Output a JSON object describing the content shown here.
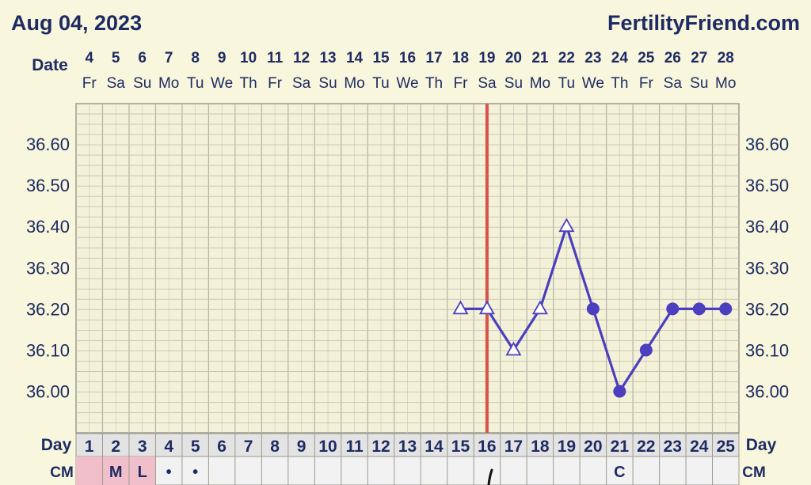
{
  "header": {
    "date": "Aug 04, 2023",
    "site": "FertilityFriend.com"
  },
  "labels": {
    "date_row": "Date",
    "day_row": "Day",
    "cm_row": "CM"
  },
  "columns": {
    "dates": [
      "4",
      "5",
      "6",
      "7",
      "8",
      "9",
      "10",
      "11",
      "12",
      "13",
      "14",
      "15",
      "16",
      "17",
      "18",
      "19",
      "20",
      "21",
      "22",
      "23",
      "24",
      "25",
      "26",
      "27",
      "28"
    ],
    "weekdays": [
      "Fr",
      "Sa",
      "Su",
      "Mo",
      "Tu",
      "We",
      "Th",
      "Fr",
      "Sa",
      "Su",
      "Mo",
      "Tu",
      "We",
      "Th",
      "Fr",
      "Sa",
      "Su",
      "Mo",
      "Tu",
      "We",
      "Th",
      "Fr",
      "Sa",
      "Su",
      "Mo"
    ],
    "cycle_days": [
      "1",
      "2",
      "3",
      "4",
      "5",
      "6",
      "7",
      "8",
      "9",
      "10",
      "11",
      "12",
      "13",
      "14",
      "15",
      "16",
      "17",
      "18",
      "19",
      "20",
      "21",
      "22",
      "23",
      "24",
      "25"
    ],
    "cm": [
      "",
      "M",
      "L",
      "•",
      "•",
      "",
      "",
      "",
      "",
      "",
      "",
      "",
      "",
      "",
      "",
      "",
      "",
      "",
      "",
      "",
      "C",
      "",
      "",
      "",
      ""
    ],
    "menstruation_days": [
      1,
      2,
      3
    ]
  },
  "chart_data": {
    "type": "line",
    "x": [
      15,
      16,
      17,
      18,
      19,
      20,
      21,
      22,
      23,
      24,
      25
    ],
    "series": [
      {
        "values": [
          36.2,
          36.2,
          36.1,
          36.2,
          36.4,
          36.2,
          36.0,
          36.1,
          36.2,
          36.2,
          36.2
        ],
        "markers": [
          "triangle-open",
          "triangle-open",
          "triangle-open",
          "triangle-open",
          "triangle-open",
          "circle-filled",
          "circle-filled",
          "circle-filled",
          "circle-filled",
          "circle-filled",
          "circle-filled"
        ]
      }
    ],
    "y_ticks": [
      "36.60",
      "36.50",
      "36.40",
      "36.30",
      "36.20",
      "36.10",
      "36.00"
    ],
    "ylim": [
      35.9,
      36.6
    ],
    "vertical_marker_day": 16,
    "colors": {
      "line": "#4b3fbf",
      "marker_line": "#d9534a",
      "grid": "#b3b3a5",
      "menstruation": "#f1bfc9"
    }
  }
}
